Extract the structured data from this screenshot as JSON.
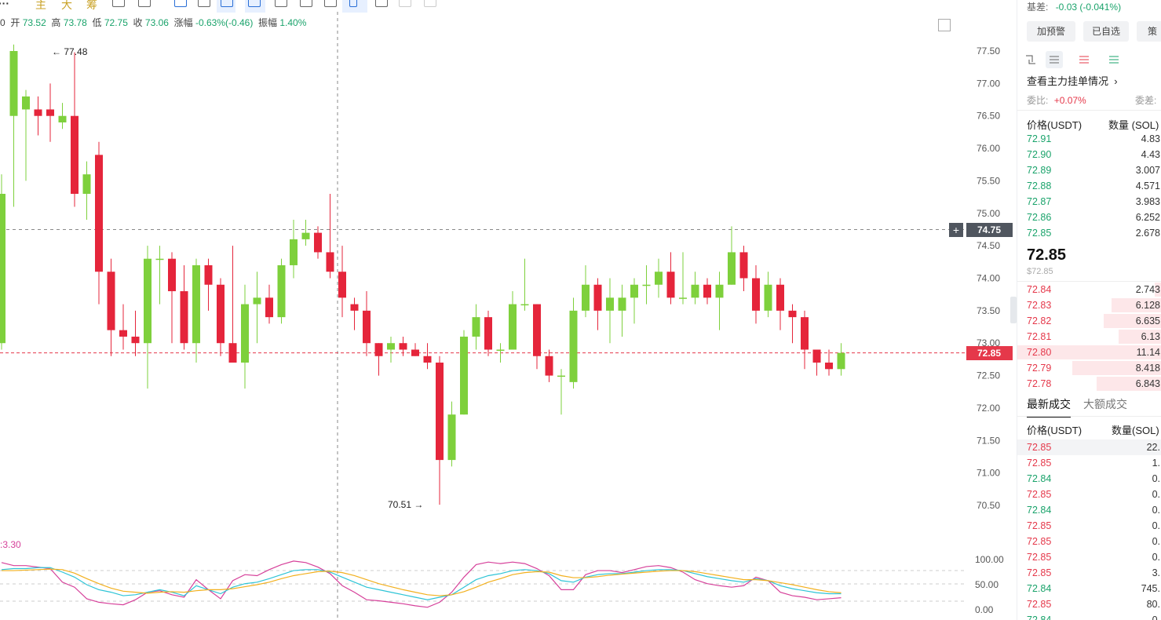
{
  "toolbar": {
    "chips": [
      "主",
      "大",
      "筹"
    ],
    "icons": [
      "indicator-icon",
      "compare-icon",
      "bookmark-icon",
      "draw-line-icon",
      "trend-line-icon",
      "kline-type-icon",
      "layout-icon",
      "edit-icon",
      "tag-icon",
      "cursor-icon",
      "trash-icon",
      "undo-icon",
      "redo-icon"
    ]
  },
  "ohlc": {
    "lead": "0",
    "open_label": "开",
    "open": "73.52",
    "high_label": "高",
    "high": "73.78",
    "low_label": "低",
    "low": "72.75",
    "close_label": "收",
    "close": "73.06",
    "change_label": "涨幅",
    "change": "-0.63%(-0.46)",
    "amp_label": "振幅",
    "amp": "1.40%"
  },
  "kdj_label": ":3.30",
  "annotations": {
    "high_marker": "77.48",
    "low_marker": "70.51"
  },
  "crosshair_price": "74.75",
  "last_price_tag": "72.85",
  "colors": {
    "up": "#7ed03c",
    "down": "#e5253b",
    "k": "#2ec4d6",
    "d": "#f2b01e",
    "j": "#d6409a"
  },
  "chart_data": {
    "type": "candlestick",
    "y_axis_ticks": [
      "77.50",
      "77.00",
      "76.50",
      "76.00",
      "75.50",
      "75.00",
      "74.50",
      "74.00",
      "73.50",
      "73.00",
      "72.50",
      "72.00",
      "71.50",
      "71.00",
      "70.50"
    ],
    "ylim": [
      70.2,
      77.7
    ],
    "candles": [
      [
        73.0,
        75.3,
        75.6,
        72.9
      ],
      [
        76.5,
        77.5,
        77.6,
        75.1
      ],
      [
        76.6,
        76.8,
        76.9,
        75.5
      ],
      [
        76.6,
        76.5,
        76.8,
        76.2
      ],
      [
        76.6,
        76.5,
        77.0,
        76.1
      ],
      [
        76.4,
        76.5,
        76.7,
        76.3
      ],
      [
        76.5,
        75.3,
        77.48,
        75.1
      ],
      [
        75.3,
        75.6,
        75.8,
        74.9
      ],
      [
        75.9,
        74.1,
        76.1,
        73.6
      ],
      [
        74.1,
        73.2,
        74.3,
        72.8
      ],
      [
        73.2,
        73.1,
        73.6,
        72.9
      ],
      [
        73.1,
        73.0,
        73.5,
        72.8
      ],
      [
        73.0,
        74.3,
        74.5,
        72.3
      ],
      [
        74.3,
        74.3,
        74.5,
        73.6
      ],
      [
        74.3,
        73.8,
        74.4,
        73.0
      ],
      [
        73.8,
        73.0,
        74.2,
        72.9
      ],
      [
        73.0,
        74.2,
        74.3,
        72.7
      ],
      [
        74.2,
        73.9,
        74.3,
        73.5
      ],
      [
        73.9,
        73.0,
        74.0,
        72.8
      ],
      [
        73.0,
        72.7,
        74.5,
        72.7
      ],
      [
        72.7,
        73.6,
        73.9,
        72.3
      ],
      [
        73.6,
        73.7,
        74.1,
        73.0
      ],
      [
        73.7,
        73.4,
        73.9,
        73.3
      ],
      [
        73.4,
        74.2,
        74.3,
        73.3
      ],
      [
        74.2,
        74.6,
        74.9,
        74.0
      ],
      [
        74.6,
        74.7,
        74.9,
        74.5
      ],
      [
        74.7,
        74.4,
        74.8,
        74.3
      ],
      [
        74.4,
        74.1,
        75.3,
        74.0
      ],
      [
        74.1,
        73.7,
        74.5,
        73.4
      ],
      [
        73.6,
        73.5,
        73.7,
        73.2
      ],
      [
        73.5,
        73.0,
        73.8,
        72.8
      ],
      [
        73.0,
        72.8,
        73.0,
        72.5
      ],
      [
        72.9,
        73.0,
        73.1,
        72.7
      ],
      [
        73.0,
        72.9,
        73.1,
        72.8
      ],
      [
        72.9,
        72.8,
        73.0,
        72.8
      ],
      [
        72.8,
        72.7,
        73.0,
        72.6
      ],
      [
        72.7,
        71.2,
        72.8,
        70.51
      ],
      [
        71.2,
        71.9,
        72.1,
        71.1
      ],
      [
        71.9,
        73.1,
        73.2,
        71.9
      ],
      [
        73.1,
        73.4,
        73.6,
        72.9
      ],
      [
        73.4,
        72.9,
        73.5,
        72.8
      ],
      [
        72.9,
        72.9,
        73.0,
        72.7
      ],
      [
        72.9,
        73.6,
        73.8,
        72.9
      ],
      [
        73.6,
        73.6,
        74.3,
        73.5
      ],
      [
        73.6,
        72.8,
        73.6,
        72.6
      ],
      [
        72.8,
        72.5,
        72.9,
        72.4
      ],
      [
        72.5,
        72.5,
        72.6,
        71.9
      ],
      [
        72.4,
        73.5,
        73.7,
        72.3
      ],
      [
        73.5,
        73.9,
        74.2,
        73.4
      ],
      [
        73.9,
        73.5,
        74.0,
        73.2
      ],
      [
        73.5,
        73.7,
        74.0,
        73.0
      ],
      [
        73.5,
        73.7,
        73.9,
        73.1
      ],
      [
        73.7,
        73.9,
        74.0,
        73.3
      ],
      [
        73.9,
        73.9,
        74.2,
        73.6
      ],
      [
        73.9,
        74.1,
        74.3,
        73.7
      ],
      [
        74.1,
        73.7,
        74.4,
        73.6
      ],
      [
        73.7,
        73.7,
        74.4,
        73.6
      ],
      [
        73.7,
        73.9,
        74.1,
        73.6
      ],
      [
        73.9,
        73.7,
        74.0,
        73.6
      ],
      [
        73.7,
        73.9,
        74.1,
        73.2
      ],
      [
        73.9,
        74.4,
        74.8,
        73.9
      ],
      [
        74.4,
        74.0,
        74.5,
        73.8
      ],
      [
        74.0,
        73.5,
        74.2,
        73.3
      ],
      [
        73.5,
        73.9,
        74.1,
        73.4
      ],
      [
        73.9,
        73.5,
        74.0,
        73.2
      ],
      [
        73.5,
        73.4,
        73.6,
        73.0
      ],
      [
        73.4,
        72.9,
        73.5,
        72.6
      ],
      [
        72.9,
        72.7,
        72.9,
        72.5
      ],
      [
        72.7,
        72.6,
        72.9,
        72.5
      ],
      [
        72.6,
        72.85,
        73.0,
        72.5
      ]
    ],
    "indicator_ticks": [
      "100.00",
      "50.00",
      "0.00"
    ],
    "kdj": {
      "k": [
        80,
        82,
        82,
        84,
        84,
        75,
        65,
        50,
        40,
        35,
        28,
        30,
        35,
        40,
        35,
        28,
        48,
        40,
        32,
        45,
        52,
        55,
        62,
        70,
        78,
        80,
        80,
        75,
        65,
        55,
        45,
        40,
        35,
        30,
        25,
        20,
        25,
        30,
        45,
        60,
        68,
        72,
        78,
        80,
        78,
        72,
        58,
        55,
        65,
        70,
        72,
        72,
        75,
        78,
        80,
        80,
        78,
        72,
        66,
        62,
        58,
        55,
        62,
        58,
        48,
        42,
        38,
        34,
        32,
        32
      ],
      "d": [
        78,
        78,
        79,
        80,
        81,
        80,
        73,
        62,
        52,
        43,
        37,
        35,
        33,
        35,
        36,
        35,
        38,
        40,
        40,
        42,
        46,
        50,
        55,
        62,
        68,
        72,
        76,
        77,
        74,
        68,
        60,
        52,
        46,
        40,
        35,
        30,
        28,
        30,
        36,
        45,
        55,
        62,
        70,
        74,
        76,
        75,
        68,
        64,
        64,
        66,
        69,
        71,
        73,
        75,
        77,
        78,
        78,
        76,
        72,
        68,
        64,
        60,
        60,
        58,
        54,
        50,
        45,
        40,
        36,
        34
      ],
      "j": [
        94,
        88,
        88,
        85,
        82,
        55,
        45,
        22,
        15,
        12,
        10,
        20,
        35,
        38,
        30,
        25,
        60,
        40,
        22,
        58,
        70,
        68,
        80,
        90,
        97,
        94,
        85,
        72,
        48,
        35,
        20,
        18,
        15,
        12,
        8,
        5,
        15,
        35,
        65,
        90,
        95,
        92,
        95,
        92,
        82,
        68,
        40,
        40,
        70,
        78,
        78,
        74,
        80,
        86,
        88,
        84,
        75,
        60,
        52,
        48,
        45,
        48,
        65,
        58,
        35,
        28,
        25,
        20,
        22,
        24
      ]
    }
  },
  "right_panel": {
    "basis_label": "基差:",
    "basis_value": "-0.03 (-0.041%)",
    "buttons": [
      "加预警",
      "已自选",
      "策"
    ],
    "view_icons": [
      "ob-view-icon",
      "ob-both-icon",
      "ob-ask-icon",
      "ob-bid-icon"
    ],
    "main_orders_label": "查看主力挂单情况",
    "ratio_label": "委比:",
    "ratio_value": "+0.07%",
    "ratio2_label": "委差:",
    "col_price": "价格(USDT)",
    "col_qty": "数量 (SOL)",
    "asks": [
      {
        "price": "72.91",
        "qty": "4.83"
      },
      {
        "price": "72.90",
        "qty": "4.43"
      },
      {
        "price": "72.89",
        "qty": "3.007"
      },
      {
        "price": "72.88",
        "qty": "4.571"
      },
      {
        "price": "72.87",
        "qty": "3.983"
      },
      {
        "price": "72.86",
        "qty": "6.252"
      },
      {
        "price": "72.85",
        "qty": "2.678"
      }
    ],
    "mid_price": "72.85",
    "mid_usd": "$72.85",
    "bids": [
      {
        "price": "72.84",
        "qty": "2.743",
        "fill": 0.05
      },
      {
        "price": "72.83",
        "qty": "6.128",
        "fill": 0.35
      },
      {
        "price": "72.82",
        "qty": "6.635",
        "fill": 0.4
      },
      {
        "price": "72.81",
        "qty": "6.13",
        "fill": 0.3
      },
      {
        "price": "72.80",
        "qty": "11.14",
        "fill": 1.0
      },
      {
        "price": "72.79",
        "qty": "8.418",
        "fill": 0.62
      },
      {
        "price": "72.78",
        "qty": "6.843",
        "fill": 0.45
      }
    ],
    "tabs": [
      "最新成交",
      "大额成交"
    ],
    "trades_col_price": "价格(USDT)",
    "trades_col_qty": "数量(SOL)",
    "trades": [
      {
        "price": "72.85",
        "qty": "22.",
        "side": "red"
      },
      {
        "price": "72.85",
        "qty": "1.",
        "side": "red"
      },
      {
        "price": "72.84",
        "qty": "0.",
        "side": "green"
      },
      {
        "price": "72.85",
        "qty": "0.",
        "side": "red"
      },
      {
        "price": "72.84",
        "qty": "0.",
        "side": "green"
      },
      {
        "price": "72.85",
        "qty": "0.",
        "side": "red"
      },
      {
        "price": "72.85",
        "qty": "0.",
        "side": "red"
      },
      {
        "price": "72.85",
        "qty": "0.",
        "side": "red"
      },
      {
        "price": "72.85",
        "qty": "3.",
        "side": "red"
      },
      {
        "price": "72.84",
        "qty": "745.",
        "side": "green"
      },
      {
        "price": "72.85",
        "qty": "80.",
        "side": "red"
      },
      {
        "price": "72.84",
        "qty": "0.",
        "side": "green"
      }
    ]
  }
}
